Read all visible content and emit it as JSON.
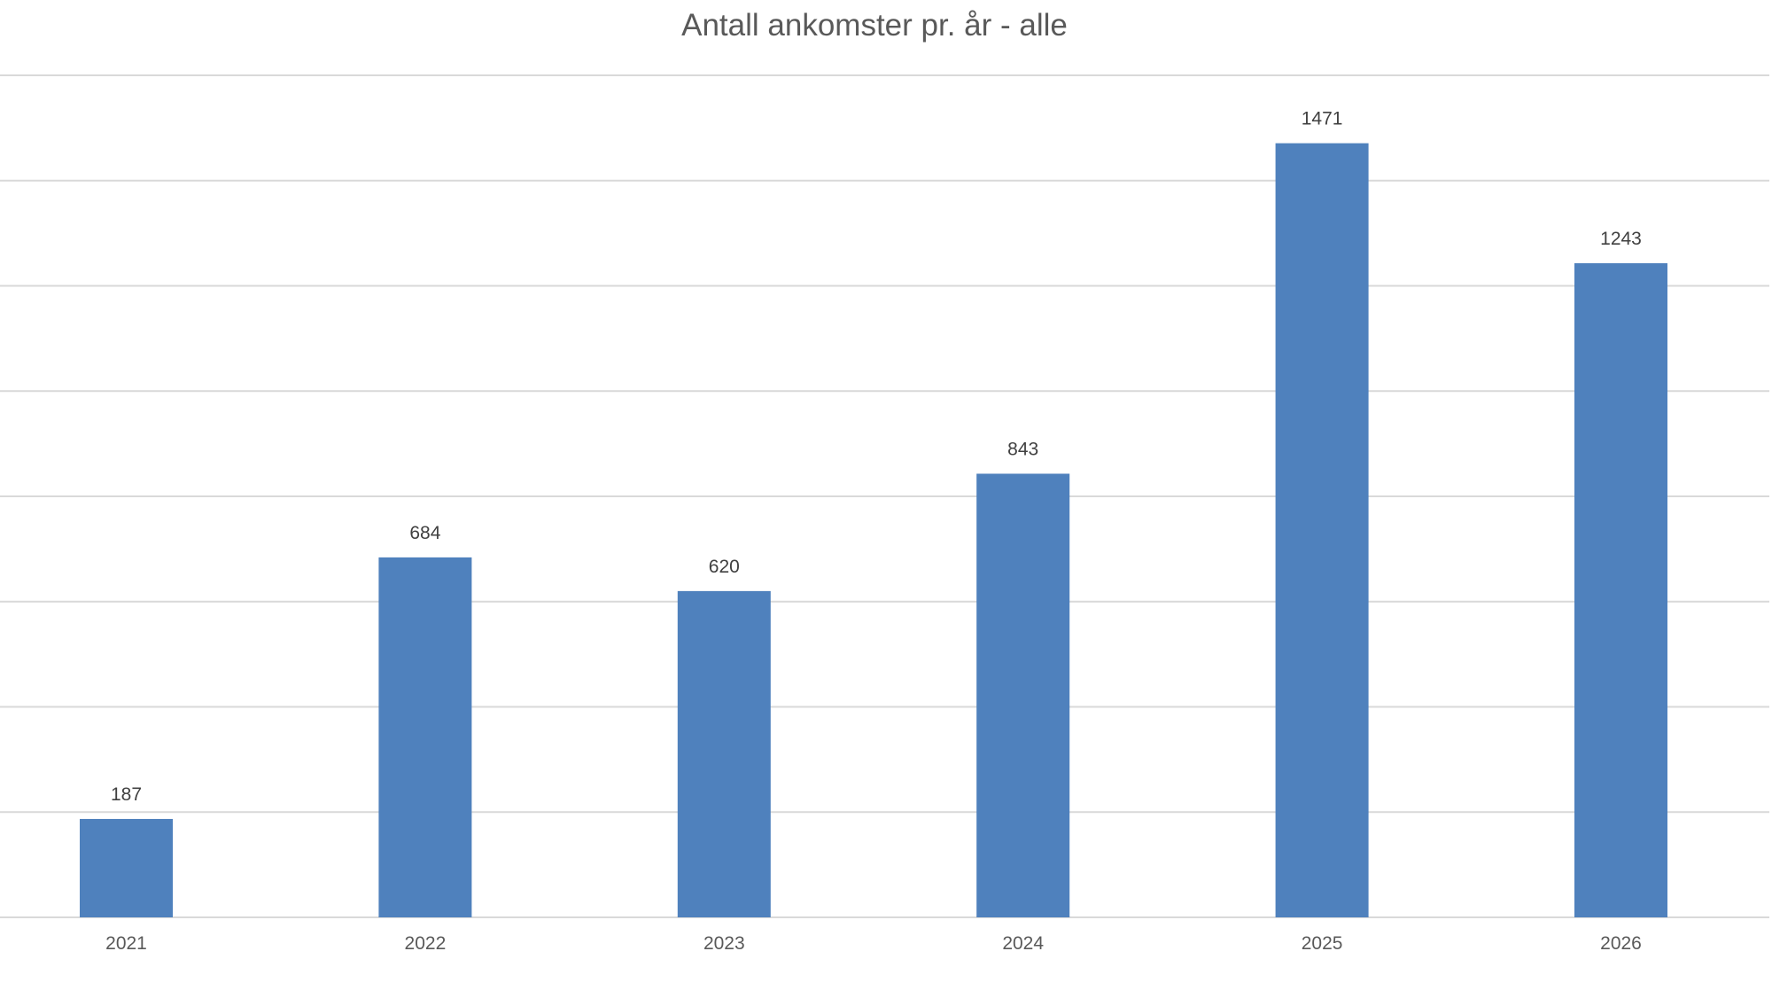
{
  "chart_data": {
    "type": "bar",
    "title": "Antall ankomster pr. år - alle",
    "categories": [
      "2021",
      "2022",
      "2023",
      "2024",
      "2025",
      "2026"
    ],
    "values": [
      187,
      684,
      620,
      843,
      1471,
      1243
    ],
    "ylim": [
      0,
      1600
    ],
    "grid": true,
    "legend": "none",
    "xlabel": "",
    "ylabel": "",
    "colors": {
      "bar": "#4f81bd",
      "grid": "#d9d9d9",
      "title": "#595959",
      "label": "#404040"
    }
  }
}
